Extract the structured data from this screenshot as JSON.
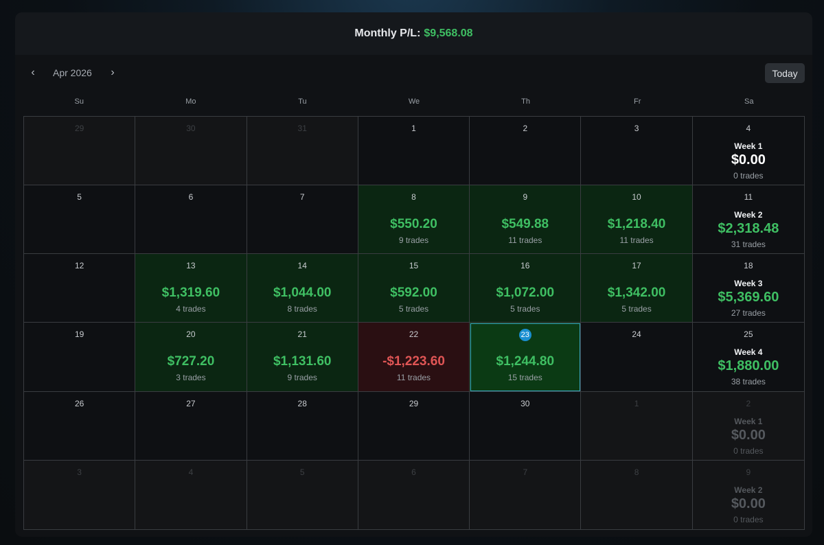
{
  "header": {
    "title_label": "Monthly P/L:",
    "title_value": "$9,568.08"
  },
  "toolbar": {
    "prev_icon": "‹",
    "next_icon": "›",
    "month": "Apr 2026",
    "today_label": "Today"
  },
  "weekdays": [
    "Su",
    "Mo",
    "Tu",
    "We",
    "Th",
    "Fr",
    "Sa"
  ],
  "weeks": [
    {
      "days": [
        {
          "d": "29",
          "other": true
        },
        {
          "d": "30",
          "other": true
        },
        {
          "d": "31",
          "other": true
        },
        {
          "d": "1"
        },
        {
          "d": "2"
        },
        {
          "d": "3"
        }
      ],
      "summary": {
        "d": "4",
        "label": "Week 1",
        "pl": "$0.00",
        "trades": "0 trades",
        "zero": true
      }
    },
    {
      "days": [
        {
          "d": "5"
        },
        {
          "d": "6"
        },
        {
          "d": "7"
        },
        {
          "d": "8",
          "pl": "$550.20",
          "trades": "9 trades",
          "status": "pos"
        },
        {
          "d": "9",
          "pl": "$549.88",
          "trades": "11 trades",
          "status": "pos"
        },
        {
          "d": "10",
          "pl": "$1,218.40",
          "trades": "11 trades",
          "status": "pos"
        }
      ],
      "summary": {
        "d": "11",
        "label": "Week 2",
        "pl": "$2,318.48",
        "trades": "31 trades"
      }
    },
    {
      "days": [
        {
          "d": "12"
        },
        {
          "d": "13",
          "pl": "$1,319.60",
          "trades": "4 trades",
          "status": "pos"
        },
        {
          "d": "14",
          "pl": "$1,044.00",
          "trades": "8 trades",
          "status": "pos"
        },
        {
          "d": "15",
          "pl": "$592.00",
          "trades": "5 trades",
          "status": "pos"
        },
        {
          "d": "16",
          "pl": "$1,072.00",
          "trades": "5 trades",
          "status": "pos"
        },
        {
          "d": "17",
          "pl": "$1,342.00",
          "trades": "5 trades",
          "status": "pos"
        }
      ],
      "summary": {
        "d": "18",
        "label": "Week 3",
        "pl": "$5,369.60",
        "trades": "27 trades"
      }
    },
    {
      "days": [
        {
          "d": "19"
        },
        {
          "d": "20",
          "pl": "$727.20",
          "trades": "3 trades",
          "status": "pos"
        },
        {
          "d": "21",
          "pl": "$1,131.60",
          "trades": "9 trades",
          "status": "pos"
        },
        {
          "d": "22",
          "pl": "-$1,223.60",
          "trades": "11 trades",
          "status": "neg"
        },
        {
          "d": "23",
          "pl": "$1,244.80",
          "trades": "15 trades",
          "status": "pos",
          "today": true
        },
        {
          "d": "24"
        }
      ],
      "summary": {
        "d": "25",
        "label": "Week 4",
        "pl": "$1,880.00",
        "trades": "38 trades"
      }
    },
    {
      "days": [
        {
          "d": "26"
        },
        {
          "d": "27"
        },
        {
          "d": "28"
        },
        {
          "d": "29"
        },
        {
          "d": "30"
        },
        {
          "d": "1",
          "other": true
        }
      ],
      "summary": {
        "d": "2",
        "label": "Week 1",
        "pl": "$0.00",
        "trades": "0 trades",
        "other": true
      }
    },
    {
      "days": [
        {
          "d": "3",
          "other": true
        },
        {
          "d": "4",
          "other": true
        },
        {
          "d": "5",
          "other": true
        },
        {
          "d": "6",
          "other": true
        },
        {
          "d": "7",
          "other": true
        },
        {
          "d": "8",
          "other": true
        }
      ],
      "summary": {
        "d": "9",
        "label": "Week 2",
        "pl": "$0.00",
        "trades": "0 trades",
        "other": true
      }
    }
  ],
  "colors": {
    "profit": "#3fbf63",
    "loss": "#e05555",
    "today_badge": "#1a8fd1"
  },
  "icons": {
    "prev": "chevron-left-icon",
    "next": "chevron-right-icon"
  }
}
